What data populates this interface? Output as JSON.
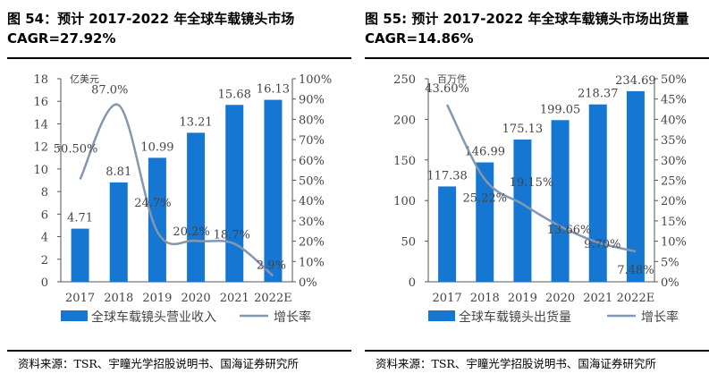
{
  "colors": {
    "bar": "#1677d2",
    "line": "#8497b0",
    "axis": "#555555"
  },
  "chart_data": [
    {
      "type": "bar+line",
      "title": "图 54：预计 2017-2022 年全球车载镜头市场 CAGR=27.92%",
      "unit_label": "亿美元",
      "categories": [
        "2017",
        "2018",
        "2019",
        "2020",
        "2021",
        "2022E"
      ],
      "series": [
        {
          "name": "全球车载镜头营业收入",
          "type": "bar",
          "axis": "left",
          "values": [
            4.71,
            8.81,
            10.99,
            13.21,
            15.68,
            16.13
          ],
          "labels": [
            "4.71",
            "8.81",
            "10.99",
            "13.21",
            "15.68",
            "16.13"
          ]
        },
        {
          "name": "增长率",
          "type": "line",
          "axis": "right",
          "values": [
            50.5,
            87.0,
            24.7,
            20.2,
            18.7,
            2.9
          ],
          "labels": [
            "50.50%",
            "87.0%",
            "24.7%",
            "20.2%",
            "18.7%",
            "2.9%"
          ]
        }
      ],
      "left_axis": {
        "min": 0,
        "max": 18,
        "ticks": [
          "0",
          "2",
          "4",
          "6",
          "8",
          "10",
          "12",
          "14",
          "16",
          "18"
        ]
      },
      "right_axis": {
        "min": 0,
        "max": 100,
        "ticks": [
          "0%",
          "10%",
          "20%",
          "30%",
          "40%",
          "50%",
          "60%",
          "70%",
          "80%",
          "90%",
          "100%"
        ]
      },
      "legend": "bottom",
      "source": "资料来源：TSR、宇瞳光学招股说明书、国海证券研究所"
    },
    {
      "type": "bar+line",
      "title": "图 55: 预计 2017-2022 年全球车载镜头市场出货量 CAGR=14.86%",
      "unit_label": "百万件",
      "categories": [
        "2017",
        "2018",
        "2019",
        "2020",
        "2021",
        "2022E"
      ],
      "series": [
        {
          "name": "全球车载镜头出货量",
          "type": "bar",
          "axis": "left",
          "values": [
            117.38,
            146.99,
            175.13,
            199.05,
            218.37,
            234.69
          ],
          "labels": [
            "117.38",
            "146.99",
            "175.13",
            "199.05",
            "218.37",
            "234.69"
          ]
        },
        {
          "name": "增长率",
          "type": "line",
          "axis": "right",
          "values": [
            43.6,
            25.22,
            19.15,
            13.66,
            9.7,
            7.48
          ],
          "labels": [
            "43.60%",
            "25.22%",
            "19.15%",
            "13.66%",
            "9.70%",
            "7.48%"
          ]
        }
      ],
      "left_axis": {
        "min": 0,
        "max": 250,
        "ticks": [
          "0",
          "50",
          "100",
          "150",
          "200",
          "250"
        ]
      },
      "right_axis": {
        "min": 0,
        "max": 50,
        "ticks": [
          "0%",
          "5%",
          "10%",
          "15%",
          "20%",
          "25%",
          "30%",
          "35%",
          "40%",
          "45%",
          "50%"
        ]
      },
      "legend": "bottom",
      "source": "资料来源：TSR、宇瞳光学招股说明书、国海证券研究所"
    }
  ]
}
